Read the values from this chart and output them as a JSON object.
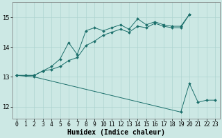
{
  "xlabel": "Humidex (Indice chaleur)",
  "bg_color": "#cce8e4",
  "line_color": "#1a6e6a",
  "grid_color": "#aed4d0",
  "xlim": [
    -0.5,
    23.5
  ],
  "ylim": [
    11.6,
    15.5
  ],
  "xticks": [
    0,
    1,
    2,
    3,
    4,
    5,
    6,
    7,
    8,
    9,
    10,
    11,
    12,
    13,
    14,
    15,
    16,
    17,
    18,
    19,
    20,
    21,
    22,
    23
  ],
  "yticks": [
    12,
    13,
    14,
    15
  ],
  "line1_x": [
    0,
    1,
    2,
    3,
    4,
    5,
    6,
    7,
    8,
    9,
    10,
    11,
    12,
    13,
    14,
    15,
    16,
    17,
    18,
    19,
    20
  ],
  "line1_y": [
    13.05,
    13.05,
    13.05,
    13.2,
    13.35,
    13.6,
    14.15,
    13.75,
    14.55,
    14.65,
    14.55,
    14.65,
    14.75,
    14.6,
    14.95,
    14.75,
    14.85,
    14.75,
    14.7,
    14.7,
    15.1
  ],
  "line2_x": [
    0,
    1,
    2,
    3,
    4,
    5,
    6,
    7,
    8,
    9,
    10,
    11,
    12,
    13,
    14,
    15,
    16,
    17,
    18,
    19,
    20
  ],
  "line2_y": [
    13.05,
    13.05,
    13.05,
    13.2,
    13.25,
    13.35,
    13.55,
    13.65,
    14.05,
    14.2,
    14.4,
    14.5,
    14.6,
    14.5,
    14.7,
    14.65,
    14.8,
    14.7,
    14.65,
    14.65,
    15.1
  ],
  "line3_x": [
    0,
    2,
    19,
    20,
    21,
    22,
    23
  ],
  "line3_y": [
    13.05,
    13.0,
    11.82,
    12.78,
    12.15,
    12.22,
    12.22
  ],
  "figsize": [
    3.2,
    2.0
  ],
  "dpi": 100,
  "tick_fontsize": 5.8,
  "label_fontsize": 7.0
}
